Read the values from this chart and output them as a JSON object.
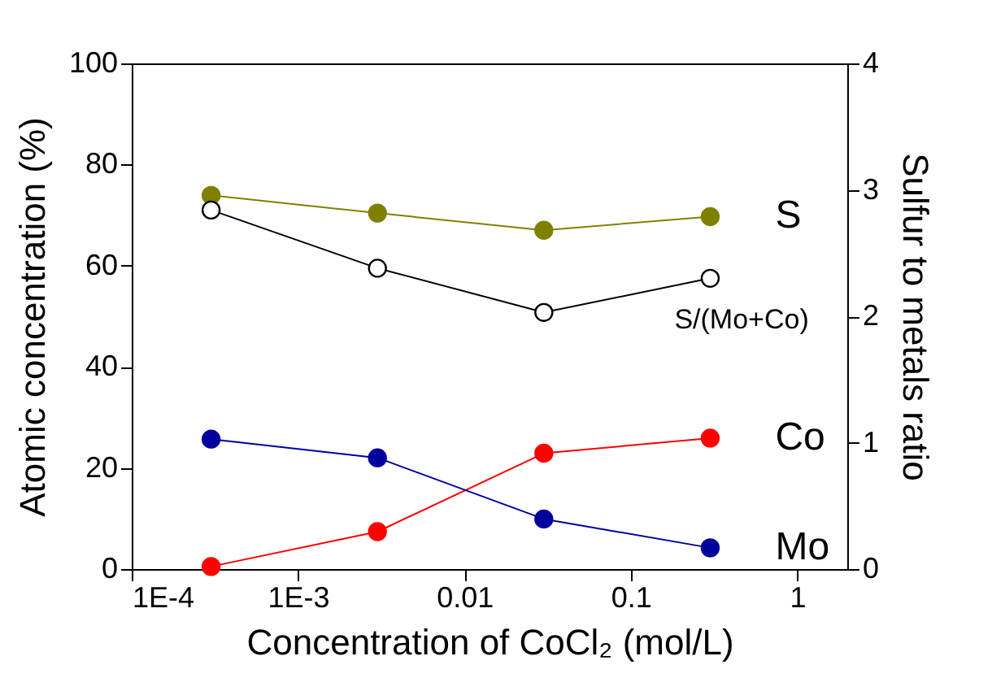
{
  "chart_data": {
    "type": "line",
    "xlabel": "Concentration of CoCl₂ (mol/L)",
    "ylabel": "Atomic concentration (%)",
    "y2label": "Sulfur to metals ratio",
    "log": "x",
    "marker": "circle",
    "xlim": [
      0.0001,
      2
    ],
    "xticks": [
      {
        "value": 0.0001,
        "label": "1E-4"
      },
      {
        "value": 0.001,
        "label": "1E-3"
      },
      0.01,
      0.1,
      1
    ],
    "ylim": [
      0,
      100
    ],
    "yticks": [
      0,
      20,
      40,
      60,
      80,
      100
    ],
    "y2lim": [
      0,
      4
    ],
    "y2ticks": [
      0,
      1,
      2,
      3,
      4
    ],
    "x": [
      0.0003,
      0.003,
      0.03,
      0.3
    ],
    "series": [
      {
        "name": "S",
        "color": "#808000",
        "values": [
          73.9,
          70.4,
          67.0,
          69.7
        ]
      },
      {
        "name": "Co",
        "color": "#ff0000",
        "values": [
          0.5,
          7.4,
          22.9,
          25.9
        ]
      },
      {
        "name": "Mo",
        "color": "#00009f",
        "values": [
          25.7,
          22.0,
          9.9,
          4.2
        ]
      },
      {
        "name": "S/(Mo+Co)",
        "color": "#000000",
        "axis": "y2",
        "values": [
          2.84,
          2.38,
          2.03,
          2.3
        ]
      }
    ]
  }
}
